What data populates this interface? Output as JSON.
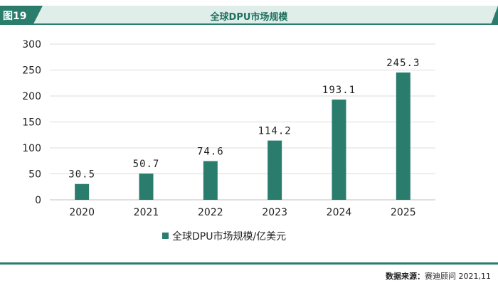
{
  "header": {
    "figure_label": "图19",
    "title": "全球DPU市场规模"
  },
  "colors": {
    "accent": "#2a7d6d",
    "bar": "#2a7d6d",
    "header_bg": "#dfeee9"
  },
  "chart_data": {
    "type": "bar",
    "title": "全球DPU市场规模",
    "categories": [
      "2020",
      "2021",
      "2022",
      "2023",
      "2024",
      "2025"
    ],
    "series": [
      {
        "name": "全球DPU市场规模/亿美元",
        "values": [
          30.5,
          50.7,
          74.6,
          114.2,
          193.1,
          245.3
        ]
      }
    ],
    "data_labels": [
      "30.5",
      "50.7",
      "74.6",
      "114.2",
      "193.1",
      "245.3"
    ],
    "yticks": [
      "0",
      "50",
      "100",
      "150",
      "200",
      "250",
      "300"
    ],
    "ylim": [
      0,
      300
    ],
    "grid": true,
    "legend_position": "bottom"
  },
  "footer": {
    "source_label": "数据来源：",
    "source_text": "赛迪顾问  2021,11"
  }
}
